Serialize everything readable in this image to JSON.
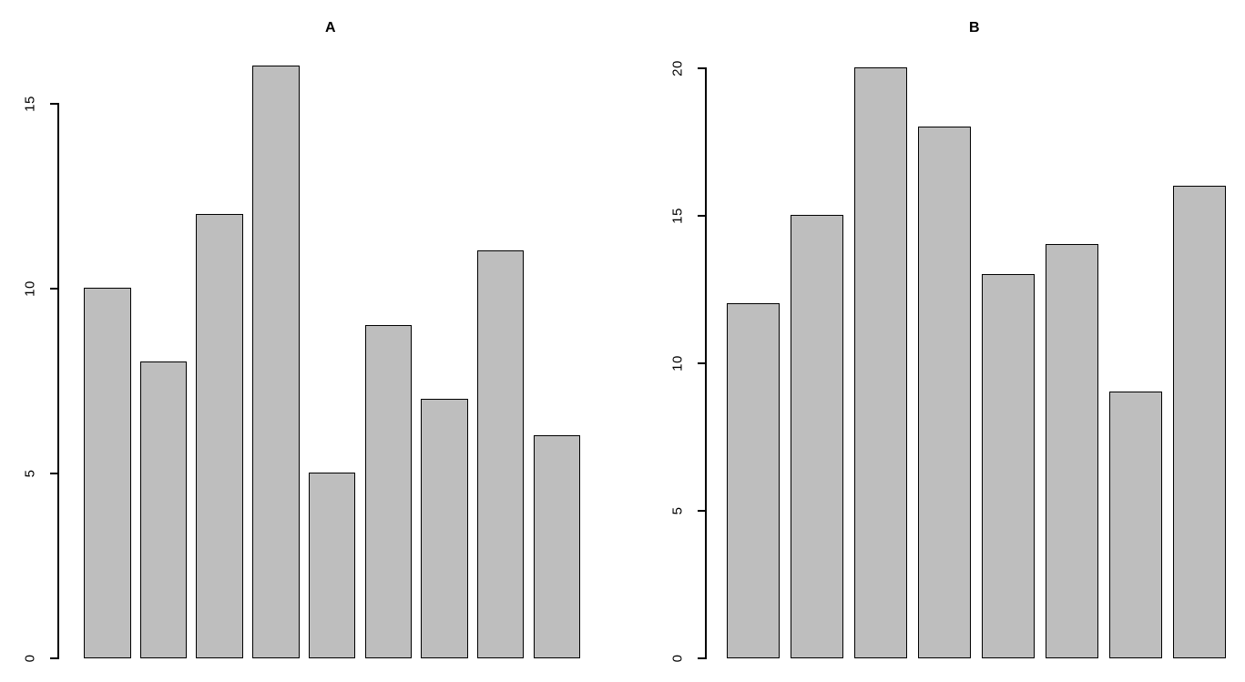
{
  "figure": {
    "background": "#ffffff",
    "bar_fill": "#bebebe",
    "bar_border": "#000000",
    "axis_color": "#000000",
    "text_color": "#000000"
  },
  "chart_data": [
    {
      "type": "bar",
      "title": "A",
      "values": [
        10,
        8,
        12,
        16,
        5,
        9,
        7,
        11,
        6
      ],
      "yticks": [
        0,
        5,
        10,
        15
      ],
      "ylim": [
        0,
        16
      ],
      "xlabel": "",
      "ylabel": "",
      "x_tick_labels": [],
      "grid": "off",
      "legend": "none",
      "tick_label_orientation": "rotated-90"
    },
    {
      "type": "bar",
      "title": "B",
      "values": [
        12,
        15,
        20,
        18,
        13,
        14,
        9,
        16
      ],
      "yticks": [
        0,
        5,
        10,
        15,
        20
      ],
      "ylim": [
        0,
        20
      ],
      "xlabel": "",
      "ylabel": "",
      "x_tick_labels": [],
      "grid": "off",
      "legend": "none",
      "tick_label_orientation": "rotated-90"
    }
  ]
}
